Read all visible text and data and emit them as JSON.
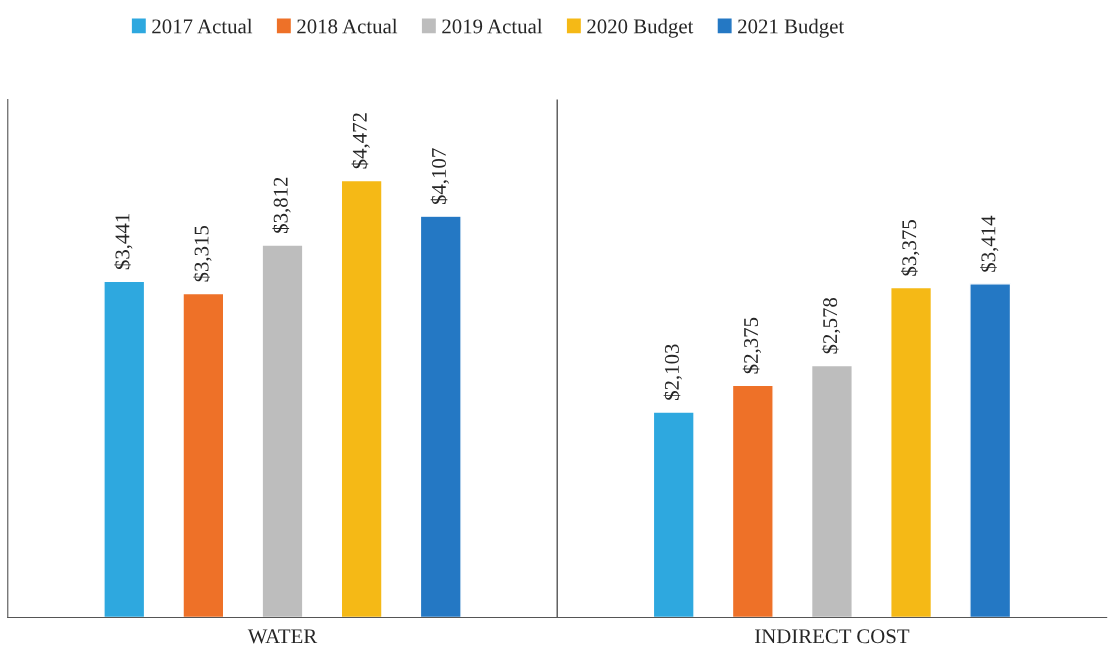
{
  "chart_data": {
    "type": "bar",
    "categories": [
      "WATER",
      "INDIRECT COST"
    ],
    "series": [
      {
        "name": "2017 Actual",
        "color": "#2ea8df",
        "values": [
          3441,
          2103
        ],
        "value_labels": [
          "$3,441",
          "$2,103"
        ]
      },
      {
        "name": "2018 Actual",
        "color": "#ee7128",
        "values": [
          3315,
          2375
        ],
        "value_labels": [
          "$3,315",
          "$2,375"
        ]
      },
      {
        "name": "2019 Actual",
        "color": "#bdbdbd",
        "values": [
          3812,
          2578
        ],
        "value_labels": [
          "$3,812",
          "$2,578"
        ]
      },
      {
        "name": "2020 Budget",
        "color": "#f5b916",
        "values": [
          4472,
          3375
        ],
        "value_labels": [
          "$4,472",
          "$3,375"
        ]
      },
      {
        "name": "2021 Budget",
        "color": "#2478c4",
        "values": [
          4107,
          3414
        ],
        "value_labels": [
          "$4,107",
          "$3,414"
        ]
      }
    ],
    "legend": "top",
    "grid": false
  }
}
